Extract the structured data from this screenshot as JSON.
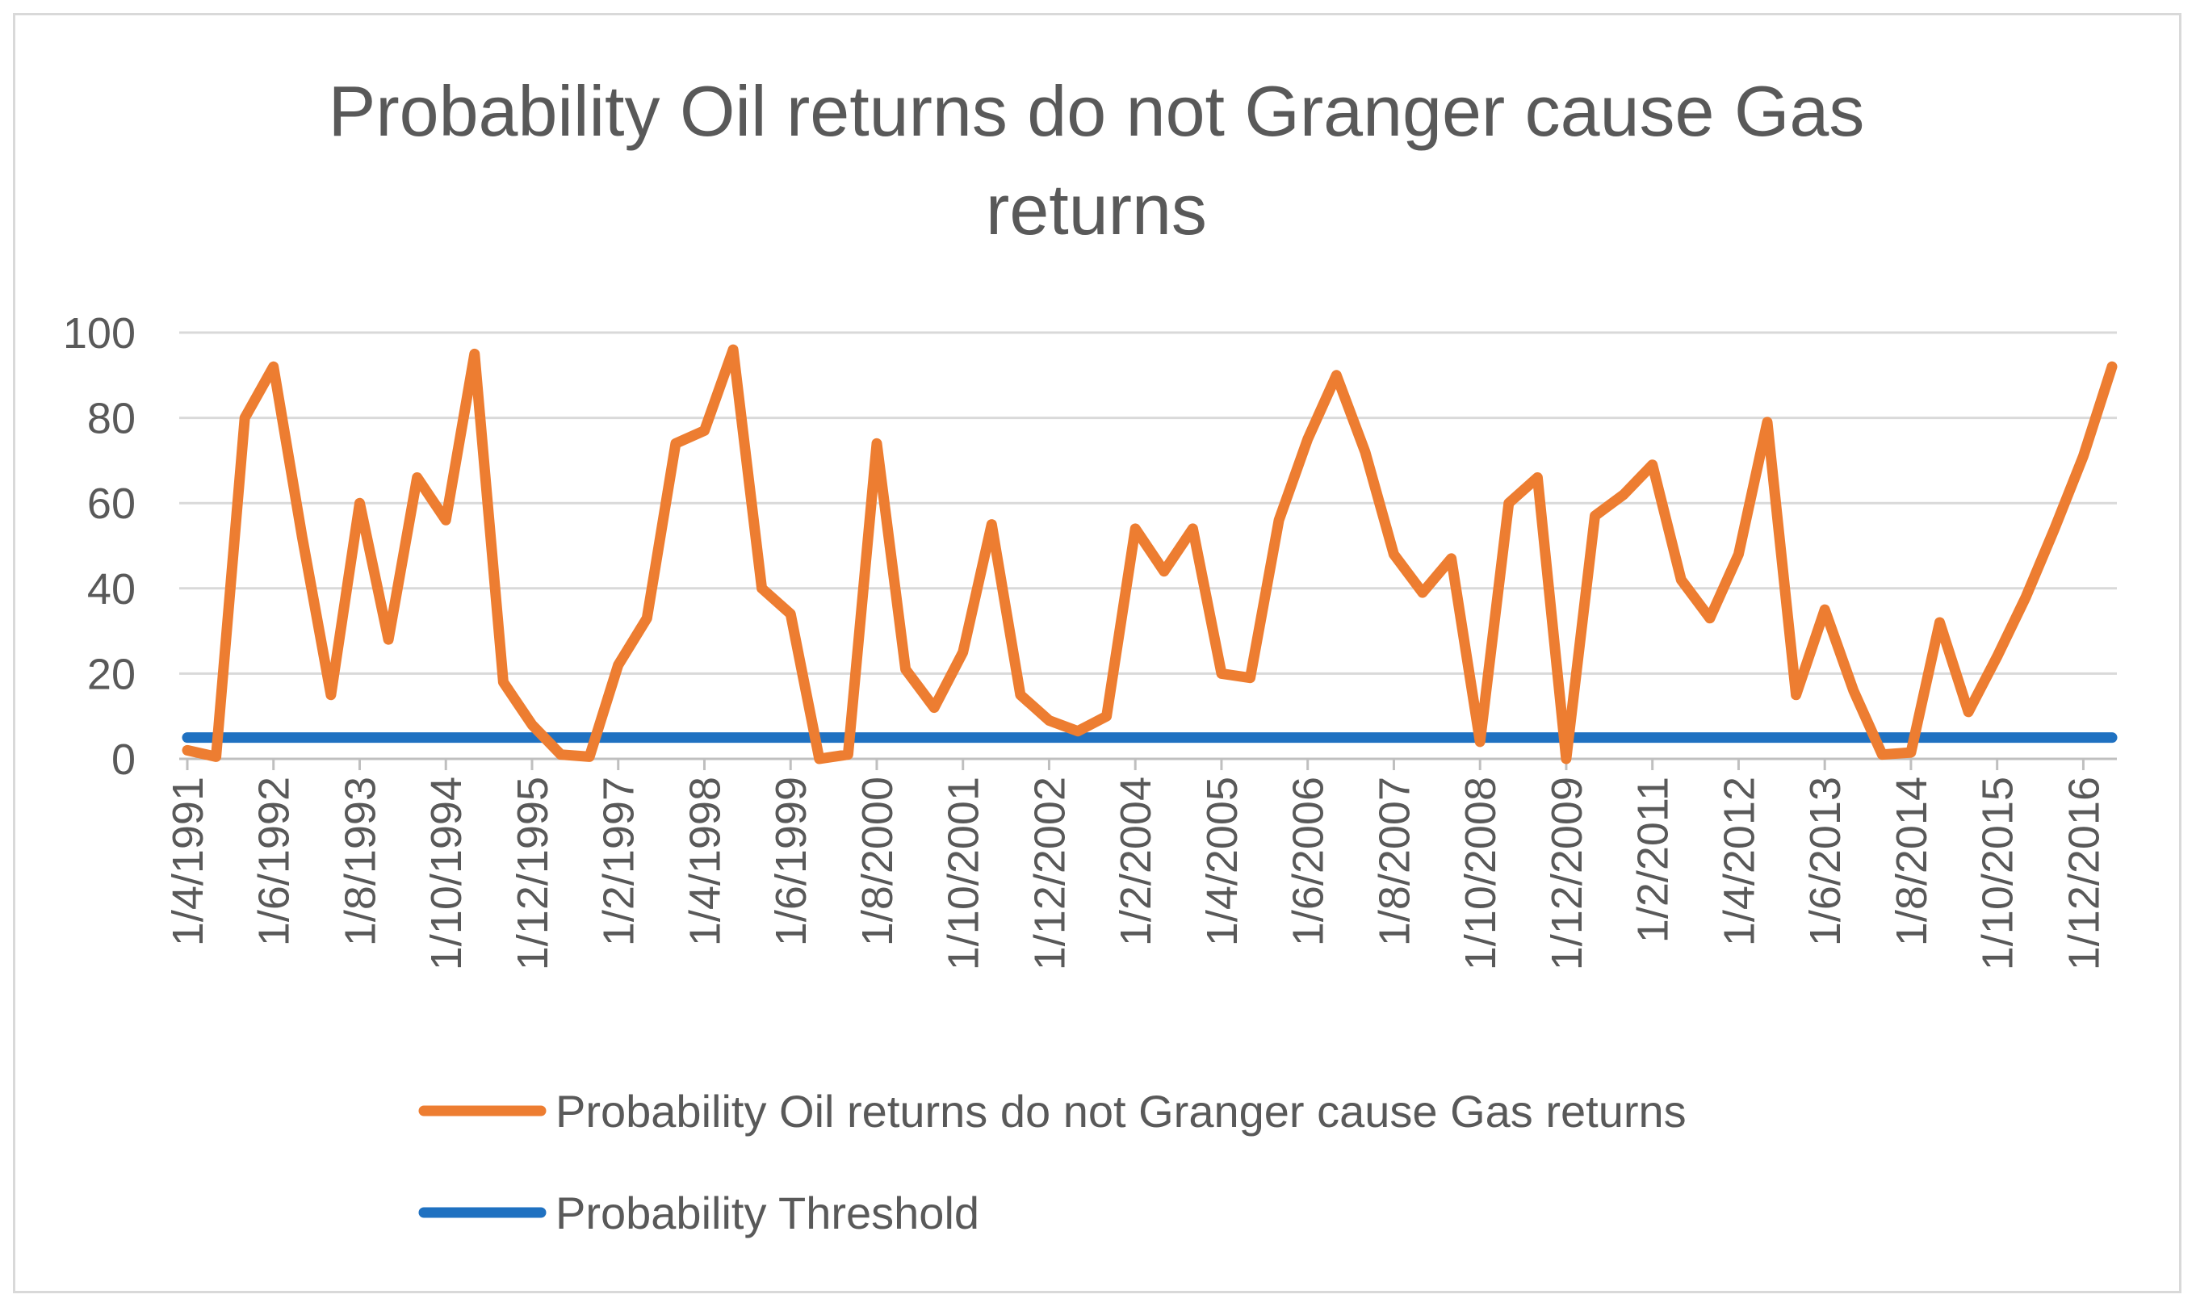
{
  "chart_data": {
    "type": "line",
    "title_lines": [
      "Probability Oil returns do not Granger cause Gas",
      "returns"
    ],
    "xlabel": "",
    "ylabel": "",
    "ylim": [
      0,
      100
    ],
    "y_ticks": [
      "0",
      "20",
      "40",
      "60",
      "80",
      "100"
    ],
    "x_tick_labels": [
      "1/4/1991",
      "1/6/1992",
      "1/8/1993",
      "1/10/1994",
      "1/12/1995",
      "1/2/1997",
      "1/4/1998",
      "1/6/1999",
      "1/8/2000",
      "1/10/2001",
      "1/12/2002",
      "1/2/2004",
      "1/4/2005",
      "1/6/2006",
      "1/8/2007",
      "1/10/2008",
      "1/12/2009",
      "1/2/2011",
      "1/4/2012",
      "1/6/2013",
      "1/8/2014",
      "1/10/2015",
      "1/12/2016"
    ],
    "grid": true,
    "legend_position": "bottom",
    "series": [
      {
        "name": "Probability Oil returns do not Granger cause Gas returns",
        "color": "#ED7D31",
        "values": [
          2,
          0.5,
          80,
          92,
          52,
          15,
          60,
          28,
          66,
          56,
          95,
          18,
          8,
          1,
          0.5,
          22,
          33,
          74,
          77,
          96,
          40,
          34,
          0,
          1,
          74,
          21,
          12,
          25,
          55,
          15,
          9,
          6.5,
          10,
          54,
          44,
          54,
          20,
          19,
          56,
          75,
          90,
          72,
          48,
          39,
          47,
          4,
          60,
          66,
          0,
          57,
          62,
          69,
          42,
          33,
          48,
          79,
          15,
          35,
          16,
          1,
          1.5,
          32,
          11,
          24,
          38,
          54,
          71,
          92
        ]
      },
      {
        "name": "Probability Threshold",
        "color": "#1F71C1",
        "values": [
          5,
          5,
          5,
          5,
          5,
          5,
          5,
          5,
          5,
          5,
          5,
          5,
          5,
          5,
          5,
          5,
          5,
          5,
          5,
          5,
          5,
          5,
          5,
          5,
          5,
          5,
          5,
          5,
          5,
          5,
          5,
          5,
          5,
          5,
          5,
          5,
          5,
          5,
          5,
          5,
          5,
          5,
          5,
          5,
          5,
          5,
          5,
          5,
          5,
          5,
          5,
          5,
          5,
          5,
          5,
          5,
          5,
          5,
          5,
          5,
          5,
          5,
          5,
          5,
          5,
          5,
          5,
          5
        ]
      }
    ]
  }
}
